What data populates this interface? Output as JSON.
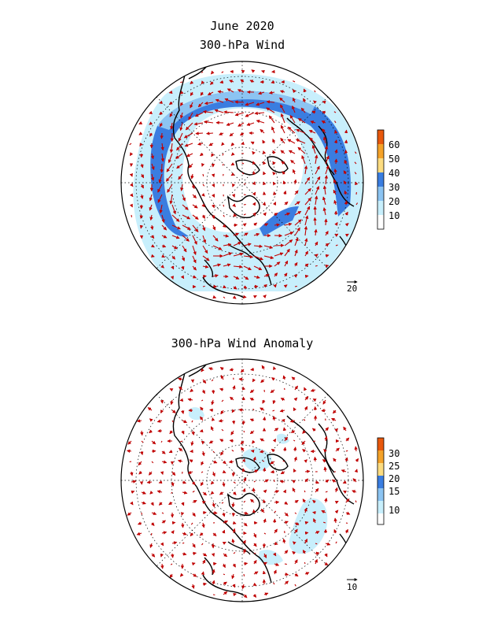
{
  "panel_top": {
    "title_line1": "June 2020",
    "title_line2": "300-hPa Wind",
    "colorbar_labels": [
      "60",
      "50",
      "40",
      "30",
      "20",
      "10"
    ],
    "colorbar_colors": [
      "#e8580c",
      "#f4a229",
      "#fcdc80",
      "#3a7de0",
      "#8cc4f2",
      "#c8effc",
      "#ffffff"
    ],
    "reference_vector_label": "20"
  },
  "panel_bottom": {
    "title": "300-hPa Wind Anomaly",
    "colorbar_labels": [
      "30",
      "25",
      "20",
      "15",
      "10"
    ],
    "colorbar_colors": [
      "#e8580c",
      "#f4a229",
      "#fcdc80",
      "#3a7de0",
      "#8cc4f2",
      "#c8effc",
      "#ffffff"
    ],
    "reference_vector_label": "10"
  },
  "colors": {
    "vector": "#c00000",
    "coastline": "#000000",
    "grid": "#000000"
  }
}
